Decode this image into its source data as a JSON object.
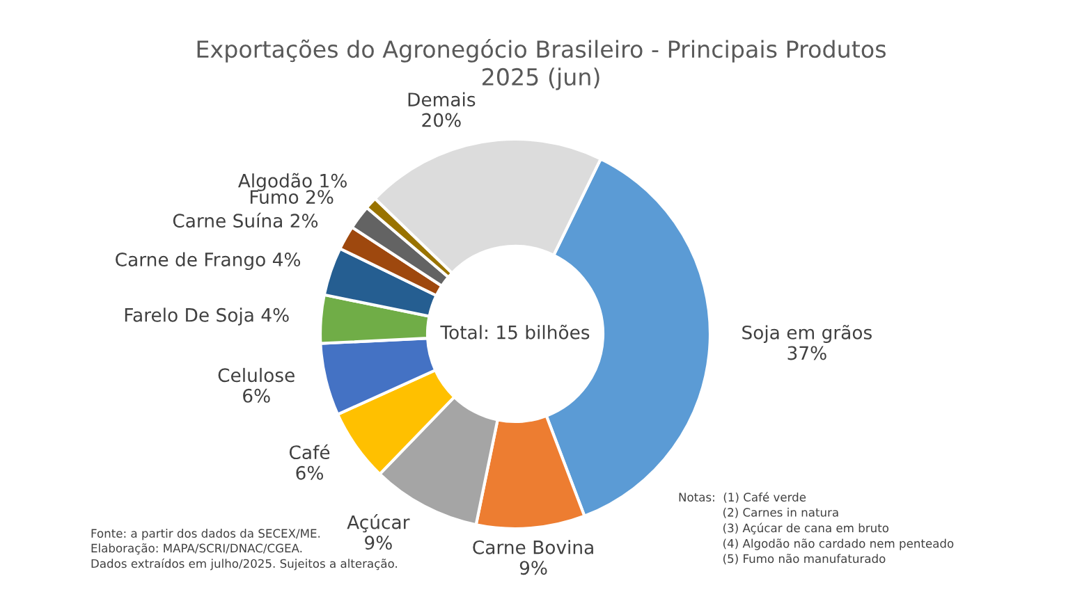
{
  "chart_data": {
    "type": "donut",
    "title": "Exportações do Agronegócio Brasileiro - Principais Produtos\n2025 (jun)",
    "categories": [
      "Soja em grãos",
      "Carne Bovina",
      "Açúcar",
      "Café",
      "Celulose",
      "Farelo De Soja",
      "Carne de Frango",
      "Carne Suína",
      "Fumo",
      "Algodão",
      "Demais"
    ],
    "values": [
      37,
      9,
      9,
      6,
      6,
      4,
      4,
      2,
      2,
      1,
      20
    ],
    "value_labels": [
      "37%",
      "9%",
      "9%",
      "6%",
      "6%",
      "4%",
      "4%",
      "2%",
      "2%",
      "1%",
      "20%"
    ],
    "colors": [
      "#5b9bd5",
      "#ed7d31",
      "#a5a5a5",
      "#ffc000",
      "#4472c4",
      "#70ad47",
      "#255e91",
      "#9e480e",
      "#636363",
      "#997300",
      "#dcdcdc"
    ],
    "legend": false,
    "annotations": [
      "Total: 15 bilhões",
      "Fonte: a partir dos dados da SECEX/ME.\nElaboração: MAPA/SCRI/DNAC/CGEA.\nDados extraídos em julho/2025. Sujeitos a alteração.",
      "Notas:  (1) Café verde\n            (2) Carnes in natura\n            (3) Açúcar de cana em bruto\n            (4) Algodão não cardado nem penteado\n            (5) Fumo não manufaturado"
    ]
  }
}
